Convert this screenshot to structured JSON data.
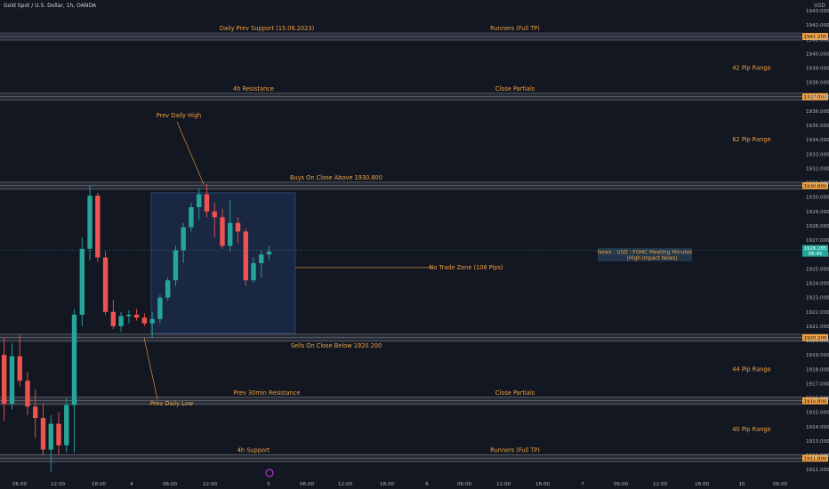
{
  "header": {
    "symbol": "Gold Spot / U.S. Dollar, 1h, OANDA",
    "currency": "USD"
  },
  "colors": {
    "background": "#131722",
    "up": "#26a69a",
    "down": "#ef5350",
    "annotation": "#f0a242",
    "zone_fill": "#1c2e4d",
    "zone_stroke": "#2f4f80",
    "level_band": "#3a3e48",
    "axis_text": "#b2b5be"
  },
  "chart_data": {
    "type": "candlestick",
    "ylim": [
      1910.0,
      1944.0
    ],
    "y_ticks": [
      1911.0,
      1912.0,
      1913.0,
      1914.0,
      1915.0,
      1916.0,
      1917.0,
      1918.0,
      1919.0,
      1920.0,
      1921.0,
      1922.0,
      1923.0,
      1924.0,
      1925.0,
      1926.0,
      1927.0,
      1928.0,
      1929.0,
      1930.0,
      1931.0,
      1932.0,
      1933.0,
      1934.0,
      1935.0,
      1936.0,
      1937.0,
      1938.0,
      1939.0,
      1940.0,
      1941.0,
      1942.0,
      1943.0
    ],
    "x_labels": [
      "06:00",
      "12:00",
      "18:00",
      "4",
      "06:00",
      "12:00",
      "5",
      "06:00",
      "12:00",
      "18:00",
      "6",
      "06:00",
      "12:00",
      "18:00",
      "7",
      "06:00",
      "12:00",
      "18:00",
      "10",
      "06:00"
    ],
    "candles": [
      [
        1919.0,
        1920.2,
        1914.4,
        1915.6
      ],
      [
        1915.6,
        1919.8,
        1915.2,
        1918.9
      ],
      [
        1918.9,
        1920.4,
        1916.8,
        1917.2
      ],
      [
        1917.2,
        1917.8,
        1914.8,
        1915.4
      ],
      [
        1915.4,
        1916.6,
        1913.2,
        1914.6
      ],
      [
        1914.6,
        1915.6,
        1912.0,
        1912.4
      ],
      [
        1912.4,
        1914.8,
        1910.8,
        1914.2
      ],
      [
        1914.2,
        1915.0,
        1912.0,
        1912.7
      ],
      [
        1912.7,
        1916.0,
        1912.2,
        1915.5
      ],
      [
        1915.5,
        1922.2,
        1912.2,
        1921.8
      ],
      [
        1921.8,
        1927.2,
        1921.0,
        1926.4
      ],
      [
        1926.4,
        1930.8,
        1925.6,
        1930.1
      ],
      [
        1930.1,
        1930.3,
        1925.5,
        1925.8
      ],
      [
        1925.8,
        1926.2,
        1921.8,
        1922.0
      ],
      [
        1922.0,
        1922.8,
        1920.8,
        1921.0
      ],
      [
        1921.0,
        1922.0,
        1920.6,
        1921.7
      ],
      [
        1921.7,
        1922.1,
        1921.2,
        1921.8
      ],
      [
        1921.8,
        1922.2,
        1921.4,
        1921.6
      ],
      [
        1921.6,
        1921.9,
        1921.0,
        1921.2
      ],
      [
        1921.2,
        1922.0,
        1920.2,
        1921.5
      ],
      [
        1921.5,
        1923.2,
        1921.2,
        1923.0
      ],
      [
        1923.0,
        1924.4,
        1922.8,
        1924.2
      ],
      [
        1924.2,
        1926.6,
        1923.8,
        1926.3
      ],
      [
        1926.3,
        1928.2,
        1925.4,
        1927.9
      ],
      [
        1927.9,
        1929.6,
        1927.6,
        1929.3
      ],
      [
        1929.3,
        1930.6,
        1928.4,
        1930.2
      ],
      [
        1930.2,
        1930.9,
        1928.6,
        1929.0
      ],
      [
        1929.0,
        1929.6,
        1927.2,
        1928.6
      ],
      [
        1928.6,
        1929.2,
        1926.4,
        1926.6
      ],
      [
        1926.6,
        1929.8,
        1926.2,
        1928.2
      ],
      [
        1928.2,
        1928.6,
        1926.8,
        1927.6
      ],
      [
        1927.6,
        1927.8,
        1923.8,
        1924.2
      ],
      [
        1924.2,
        1925.8,
        1924.0,
        1925.4
      ],
      [
        1925.4,
        1926.3,
        1924.4,
        1926.0
      ],
      [
        1926.0,
        1926.6,
        1925.6,
        1926.2
      ]
    ],
    "levels": [
      {
        "price": 1941.2,
        "label": "Daily Prev Support (15.06.2023)",
        "right_label": "Runners (Full TP)",
        "tag": "1941.200"
      },
      {
        "price": 1937.0,
        "label": "4h Resistance",
        "right_label": "Close Partials",
        "tag": "1937.000"
      },
      {
        "price": 1930.8,
        "label": "Buys On Close Above 1930.800",
        "right_label": "",
        "tag": "1930.800"
      },
      {
        "price": 1920.2,
        "label": "Sells On Close Below 1920.200",
        "right_label": "",
        "tag": "1920.200"
      },
      {
        "price": 1915.8,
        "label": "Prev 30min Resistance",
        "right_label": "Close Partials",
        "tag": "1915.800"
      },
      {
        "price": 1911.8,
        "label": "4h Support",
        "right_label": "Runners (Full TP)",
        "tag": "1911.800"
      }
    ],
    "ranges": [
      {
        "label": "42 Pip Range",
        "price": 1939.0
      },
      {
        "label": "62 Pip Range",
        "price": 1934.0
      },
      {
        "label": "44 Pip Range",
        "price": 1918.0
      },
      {
        "label": "40 Pip Range",
        "price": 1913.8
      }
    ],
    "zone": {
      "label": "No Trade Zone (106 Pips)",
      "top": 1930.3,
      "bottom": 1920.5
    },
    "annotations": [
      {
        "label": "Prev Daily High"
      },
      {
        "label": "Prev Daily Low"
      }
    ],
    "current_price": {
      "value": "1926.285",
      "countdown": "56:45"
    },
    "news": {
      "line1": "News : USD : FOMC Meeting Minutes",
      "line2": "(High Impact News)"
    }
  }
}
